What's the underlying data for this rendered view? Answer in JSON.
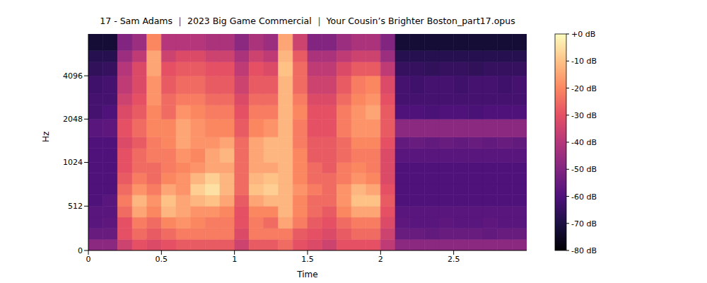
{
  "chart_data": {
    "type": "heatmap",
    "title": "17 - Sam Adams ｜ 2023 Big Game Commercial ｜ Your Cousin’s Brighter Boston_part17.opus",
    "x_label": "Time",
    "y_label": "Hz",
    "xlim": [
      0,
      3
    ],
    "xticks": [
      0,
      0.5,
      1,
      1.5,
      2,
      2.5
    ],
    "ylim": [
      0,
      8000
    ],
    "yticks": [
      0,
      512,
      1024,
      2048,
      4096
    ],
    "grid": false,
    "x_bins": [
      0,
      0.1,
      0.2,
      0.3,
      0.4,
      0.5,
      0.6,
      0.7,
      0.8,
      0.9,
      1.0,
      1.1,
      1.2,
      1.3,
      1.4,
      1.5,
      1.6,
      1.7,
      1.8,
      1.9,
      2.0,
      2.1,
      2.2,
      2.3,
      2.4,
      2.5,
      2.6,
      2.7,
      2.8,
      2.9,
      3.0
    ],
    "y_bins": [
      0,
      128,
      256,
      384,
      512,
      640,
      768,
      896,
      1024,
      1280,
      1536,
      2048,
      2560,
      3072,
      4096,
      5120,
      6144,
      8000
    ],
    "cells": [
      [
        -48,
        -55,
        -58,
        -58,
        -60,
        -60,
        -60,
        -60,
        -60,
        -60,
        -58,
        -62,
        -62,
        -63,
        -66,
        -68,
        -72
      ],
      [
        -48,
        -55,
        -57,
        -58,
        -58,
        -60,
        -60,
        -60,
        -60,
        -60,
        -57,
        -60,
        -62,
        -62,
        -65,
        -68,
        -72
      ],
      [
        -35,
        -30,
        -30,
        -25,
        -22,
        -25,
        -28,
        -30,
        -30,
        -32,
        -30,
        -32,
        -35,
        -38,
        -40,
        -45,
        -50
      ],
      [
        -30,
        -25,
        -22,
        -15,
        -12,
        -18,
        -22,
        -25,
        -25,
        -28,
        -25,
        -28,
        -30,
        -32,
        -32,
        -38,
        -45
      ],
      [
        -32,
        -28,
        -25,
        -20,
        -18,
        -22,
        -25,
        -25,
        -22,
        -22,
        -20,
        -20,
        -18,
        -18,
        -15,
        -15,
        -20
      ],
      [
        -30,
        -25,
        -20,
        -12,
        -10,
        -15,
        -20,
        -22,
        -22,
        -20,
        -20,
        -25,
        -25,
        -28,
        -30,
        -35,
        -40
      ],
      [
        -28,
        -22,
        -18,
        -15,
        -15,
        -18,
        -18,
        -20,
        -18,
        -15,
        -15,
        -18,
        -22,
        -25,
        -28,
        -32,
        -40
      ],
      [
        -28,
        -22,
        -20,
        -18,
        -12,
        -8,
        -12,
        -18,
        -20,
        -18,
        -18,
        -20,
        -22,
        -25,
        -28,
        -32,
        -40
      ],
      [
        -28,
        -22,
        -22,
        -18,
        -10,
        -5,
        -8,
        -15,
        -15,
        -18,
        -20,
        -22,
        -25,
        -28,
        -30,
        -35,
        -42
      ],
      [
        -28,
        -22,
        -22,
        -20,
        -15,
        -12,
        -12,
        -15,
        -12,
        -15,
        -20,
        -22,
        -25,
        -28,
        -30,
        -35,
        -42
      ],
      [
        -35,
        -32,
        -30,
        -30,
        -28,
        -25,
        -25,
        -25,
        -25,
        -25,
        -28,
        -30,
        -32,
        -35,
        -38,
        -42,
        -48
      ],
      [
        -28,
        -22,
        -22,
        -20,
        -15,
        -10,
        -12,
        -15,
        -15,
        -15,
        -20,
        -22,
        -25,
        -28,
        -30,
        -35,
        -42
      ],
      [
        -28,
        -22,
        -25,
        -20,
        -12,
        -8,
        -10,
        -15,
        -12,
        -12,
        -18,
        -22,
        -25,
        -28,
        -32,
        -38,
        -45
      ],
      [
        -25,
        -22,
        -15,
        -12,
        -12,
        -12,
        -12,
        -12,
        -12,
        -12,
        -12,
        -12,
        -12,
        -12,
        -10,
        -12,
        -15
      ],
      [
        -30,
        -28,
        -22,
        -20,
        -20,
        -18,
        -20,
        -20,
        -20,
        -22,
        -22,
        -20,
        -22,
        -25,
        -25,
        -28,
        -35
      ],
      [
        -32,
        -30,
        -28,
        -25,
        -25,
        -22,
        -25,
        -25,
        -28,
        -28,
        -30,
        -30,
        -32,
        -35,
        -38,
        -42,
        -50
      ],
      [
        -35,
        -32,
        -30,
        -28,
        -25,
        -25,
        -25,
        -28,
        -28,
        -28,
        -30,
        -30,
        -32,
        -35,
        -38,
        -42,
        -50
      ],
      [
        -30,
        -28,
        -25,
        -20,
        -18,
        -18,
        -22,
        -22,
        -25,
        -25,
        -22,
        -22,
        -25,
        -28,
        -32,
        -38,
        -45
      ],
      [
        -30,
        -25,
        -22,
        -15,
        -10,
        -12,
        -18,
        -20,
        -22,
        -20,
        -18,
        -18,
        -20,
        -22,
        -28,
        -35,
        -42
      ],
      [
        -30,
        -25,
        -22,
        -15,
        -10,
        -15,
        -20,
        -22,
        -22,
        -20,
        -18,
        -15,
        -18,
        -20,
        -28,
        -35,
        -42
      ],
      [
        -38,
        -35,
        -32,
        -30,
        -28,
        -30,
        -32,
        -32,
        -32,
        -30,
        -28,
        -28,
        -30,
        -32,
        -38,
        -45,
        -50
      ],
      [
        -48,
        -55,
        -57,
        -58,
        -60,
        -60,
        -60,
        -60,
        -58,
        -56,
        -48,
        -60,
        -62,
        -62,
        -65,
        -68,
        -72
      ],
      [
        -48,
        -55,
        -58,
        -58,
        -60,
        -60,
        -60,
        -60,
        -58,
        -55,
        -48,
        -60,
        -62,
        -63,
        -65,
        -68,
        -72
      ],
      [
        -48,
        -56,
        -58,
        -58,
        -60,
        -60,
        -60,
        -60,
        -58,
        -56,
        -48,
        -61,
        -62,
        -62,
        -66,
        -68,
        -72
      ],
      [
        -48,
        -55,
        -57,
        -58,
        -60,
        -60,
        -60,
        -60,
        -58,
        -55,
        -48,
        -60,
        -62,
        -62,
        -65,
        -68,
        -72
      ],
      [
        -48,
        -55,
        -58,
        -58,
        -60,
        -60,
        -60,
        -60,
        -58,
        -56,
        -48,
        -60,
        -62,
        -63,
        -65,
        -68,
        -72
      ],
      [
        -48,
        -55,
        -58,
        -58,
        -60,
        -60,
        -60,
        -60,
        -58,
        -55,
        -48,
        -61,
        -62,
        -62,
        -66,
        -68,
        -72
      ],
      [
        -48,
        -56,
        -57,
        -58,
        -60,
        -60,
        -60,
        -60,
        -58,
        -56,
        -48,
        -60,
        -62,
        -62,
        -65,
        -68,
        -72
      ],
      [
        -48,
        -55,
        -58,
        -58,
        -60,
        -60,
        -60,
        -60,
        -58,
        -55,
        -48,
        -60,
        -62,
        -63,
        -65,
        -68,
        -72
      ],
      [
        -48,
        -55,
        -58,
        -58,
        -60,
        -60,
        -60,
        -60,
        -58,
        -56,
        -48,
        -60,
        -62,
        -62,
        -65,
        -68,
        -72
      ]
    ],
    "colorbar": {
      "range": [
        -80,
        0
      ],
      "ticks": [
        {
          "value": 0,
          "label": "+0 dB"
        },
        {
          "value": -10,
          "label": "-10 dB"
        },
        {
          "value": -20,
          "label": "-20 dB"
        },
        {
          "value": -30,
          "label": "-30 dB"
        },
        {
          "value": -40,
          "label": "-40 dB"
        },
        {
          "value": -50,
          "label": "-50 dB"
        },
        {
          "value": -60,
          "label": "-60 dB"
        },
        {
          "value": -70,
          "label": "-70 dB"
        },
        {
          "value": -80,
          "label": "-80 dB"
        }
      ]
    }
  }
}
